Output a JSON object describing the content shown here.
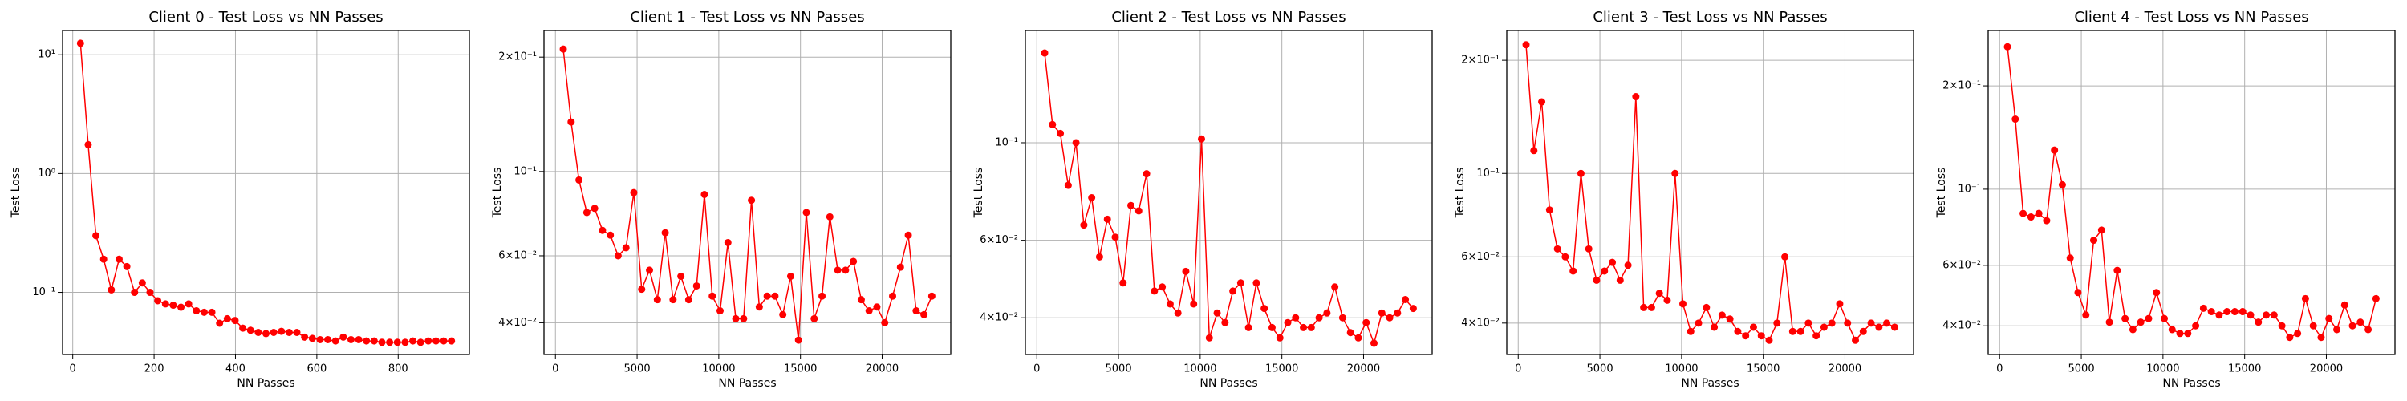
{
  "chart_data": [
    {
      "type": "line",
      "title": "Client 0 - Test Loss vs NN Passes",
      "xlabel": "NN Passes",
      "ylabel": "Test Loss",
      "color": "#ff0000",
      "log_y": true,
      "grid": true,
      "x": [
        19,
        38,
        57,
        76,
        95,
        114,
        133,
        152,
        171,
        190,
        209,
        228,
        247,
        266,
        285,
        304,
        323,
        342,
        361,
        380,
        399,
        418,
        437,
        456,
        475,
        494,
        513,
        532,
        551,
        570,
        589,
        608,
        627,
        646,
        665,
        684,
        703,
        722,
        741,
        760,
        779,
        798,
        817,
        836,
        855,
        874,
        893,
        912,
        931
      ],
      "values": [
        12.5,
        1.75,
        0.3,
        0.19,
        0.105,
        0.19,
        0.165,
        0.1,
        0.12,
        0.1,
        0.085,
        0.08,
        0.078,
        0.075,
        0.08,
        0.07,
        0.068,
        0.068,
        0.055,
        0.06,
        0.058,
        0.05,
        0.048,
        0.046,
        0.045,
        0.046,
        0.047,
        0.046,
        0.046,
        0.042,
        0.041,
        0.04,
        0.04,
        0.039,
        0.042,
        0.04,
        0.04,
        0.039,
        0.039,
        0.038,
        0.038,
        0.038,
        0.038,
        0.039,
        0.038,
        0.039,
        0.039,
        0.039,
        0.039
      ],
      "xlim": [
        -25,
        975
      ],
      "xticks": [
        0,
        200,
        400,
        600,
        800
      ],
      "ylim": [
        0.03,
        16
      ],
      "yticks": [
        {
          "value": 0.1,
          "label": "10⁻¹"
        },
        {
          "value": 1,
          "label": "10⁰"
        },
        {
          "value": 10,
          "label": "10¹"
        }
      ]
    },
    {
      "type": "line",
      "title": "Client 1 - Test Loss vs NN Passes",
      "xlabel": "NN Passes",
      "ylabel": "Test Loss",
      "color": "#ff0000",
      "log_y": true,
      "grid": true,
      "x": [
        480,
        960,
        1440,
        1920,
        2400,
        2880,
        3360,
        3840,
        4320,
        4800,
        5280,
        5760,
        6240,
        6720,
        7200,
        7680,
        8160,
        8640,
        9120,
        9600,
        10080,
        10560,
        11040,
        11520,
        12000,
        12480,
        12960,
        13440,
        13920,
        14400,
        14880,
        15360,
        15840,
        16320,
        16800,
        17280,
        17760,
        18240,
        18720,
        19200,
        19680,
        20160,
        20640,
        21120,
        21600,
        22080,
        22560,
        23040
      ],
      "values": [
        0.21,
        0.135,
        0.095,
        0.078,
        0.08,
        0.07,
        0.068,
        0.06,
        0.063,
        0.088,
        0.049,
        0.055,
        0.046,
        0.069,
        0.046,
        0.053,
        0.046,
        0.05,
        0.087,
        0.047,
        0.043,
        0.065,
        0.041,
        0.041,
        0.084,
        0.044,
        0.047,
        0.047,
        0.042,
        0.053,
        0.036,
        0.078,
        0.041,
        0.047,
        0.076,
        0.055,
        0.055,
        0.058,
        0.046,
        0.043,
        0.044,
        0.04,
        0.047,
        0.056,
        0.068,
        0.043,
        0.042,
        0.047
      ],
      "xlim": [
        -700,
        24200
      ],
      "xticks": [
        0,
        5000,
        10000,
        15000,
        20000
      ],
      "ylim": [
        0.033,
        0.235
      ],
      "yticks": [
        {
          "value": 0.04,
          "label": "4×10⁻²"
        },
        {
          "value": 0.06,
          "label": "6×10⁻²"
        },
        {
          "value": 0.1,
          "label": "10⁻¹"
        },
        {
          "value": 0.2,
          "label": "2×10⁻¹"
        }
      ]
    },
    {
      "type": "line",
      "title": "Client 2 - Test Loss vs NN Passes",
      "xlabel": "NN Passes",
      "ylabel": "Test Loss",
      "color": "#ff0000",
      "log_y": true,
      "grid": true,
      "x": [
        480,
        960,
        1440,
        1920,
        2400,
        2880,
        3360,
        3840,
        4320,
        4800,
        5280,
        5760,
        6240,
        6720,
        7200,
        7680,
        8160,
        8640,
        9120,
        9600,
        10080,
        10560,
        11040,
        11520,
        12000,
        12480,
        12960,
        13440,
        13920,
        14400,
        14880,
        15360,
        15840,
        16320,
        16800,
        17280,
        17760,
        18240,
        18720,
        19200,
        19680,
        20160,
        20640,
        21120,
        21600,
        22080,
        22560,
        23040
      ],
      "values": [
        0.16,
        0.11,
        0.105,
        0.08,
        0.1,
        0.065,
        0.075,
        0.055,
        0.067,
        0.061,
        0.048,
        0.072,
        0.07,
        0.085,
        0.046,
        0.047,
        0.043,
        0.041,
        0.051,
        0.043,
        0.102,
        0.036,
        0.041,
        0.039,
        0.046,
        0.048,
        0.038,
        0.048,
        0.042,
        0.038,
        0.036,
        0.039,
        0.04,
        0.038,
        0.038,
        0.04,
        0.041,
        0.047,
        0.04,
        0.037,
        0.036,
        0.039,
        0.035,
        0.041,
        0.04,
        0.041,
        0.044,
        0.042
      ],
      "xlim": [
        -700,
        24200
      ],
      "xticks": [
        0,
        5000,
        10000,
        15000,
        20000
      ],
      "ylim": [
        0.033,
        0.18
      ],
      "yticks": [
        {
          "value": 0.04,
          "label": "4×10⁻²"
        },
        {
          "value": 0.06,
          "label": "6×10⁻²"
        },
        {
          "value": 0.1,
          "label": "10⁻¹"
        }
      ]
    },
    {
      "type": "line",
      "title": "Client 3 - Test Loss vs NN Passes",
      "xlabel": "NN Passes",
      "ylabel": "Test Loss",
      "color": "#ff0000",
      "log_y": true,
      "grid": true,
      "x": [
        480,
        960,
        1440,
        1920,
        2400,
        2880,
        3360,
        3840,
        4320,
        4800,
        5280,
        5760,
        6240,
        6720,
        7200,
        7680,
        8160,
        8640,
        9120,
        9600,
        10080,
        10560,
        11040,
        11520,
        12000,
        12480,
        12960,
        13440,
        13920,
        14400,
        14880,
        15360,
        15840,
        16320,
        16800,
        17280,
        17760,
        18240,
        18720,
        19200,
        19680,
        20160,
        20640,
        21120,
        21600,
        22080,
        22560,
        23040
      ],
      "values": [
        0.22,
        0.115,
        0.155,
        0.08,
        0.063,
        0.06,
        0.055,
        0.1,
        0.063,
        0.052,
        0.055,
        0.058,
        0.052,
        0.057,
        0.16,
        0.044,
        0.044,
        0.048,
        0.046,
        0.1,
        0.045,
        0.038,
        0.04,
        0.044,
        0.039,
        0.042,
        0.041,
        0.038,
        0.037,
        0.039,
        0.037,
        0.036,
        0.04,
        0.06,
        0.038,
        0.038,
        0.04,
        0.037,
        0.039,
        0.04,
        0.045,
        0.04,
        0.036,
        0.038,
        0.04,
        0.039,
        0.04,
        0.039
      ],
      "xlim": [
        -700,
        24200
      ],
      "xticks": [
        0,
        5000,
        10000,
        15000,
        20000
      ],
      "ylim": [
        0.033,
        0.24
      ],
      "yticks": [
        {
          "value": 0.04,
          "label": "4×10⁻²"
        },
        {
          "value": 0.06,
          "label": "6×10⁻²"
        },
        {
          "value": 0.1,
          "label": "10⁻¹"
        },
        {
          "value": 0.2,
          "label": "2×10⁻¹"
        }
      ]
    },
    {
      "type": "line",
      "title": "Client 4 - Test Loss vs NN Passes",
      "xlabel": "NN Passes",
      "ylabel": "Test Loss",
      "color": "#ff0000",
      "log_y": true,
      "grid": true,
      "x": [
        480,
        960,
        1440,
        1920,
        2400,
        2880,
        3360,
        3840,
        4320,
        4800,
        5280,
        5760,
        6240,
        6720,
        7200,
        7680,
        8160,
        8640,
        9120,
        9600,
        10080,
        10560,
        11040,
        11520,
        12000,
        12480,
        12960,
        13440,
        13920,
        14400,
        14880,
        15360,
        15840,
        16320,
        16800,
        17280,
        17760,
        18240,
        18720,
        19200,
        19680,
        20160,
        20640,
        21120,
        21600,
        22080,
        22560,
        23040
      ],
      "values": [
        0.26,
        0.16,
        0.085,
        0.083,
        0.085,
        0.081,
        0.13,
        0.103,
        0.063,
        0.05,
        0.043,
        0.071,
        0.076,
        0.041,
        0.058,
        0.042,
        0.039,
        0.041,
        0.042,
        0.05,
        0.042,
        0.039,
        0.038,
        0.038,
        0.04,
        0.045,
        0.044,
        0.043,
        0.044,
        0.044,
        0.044,
        0.043,
        0.041,
        0.043,
        0.043,
        0.04,
        0.037,
        0.038,
        0.048,
        0.04,
        0.037,
        0.042,
        0.039,
        0.046,
        0.04,
        0.041,
        0.039,
        0.048
      ],
      "xlim": [
        -700,
        24200
      ],
      "xticks": [
        0,
        5000,
        10000,
        15000,
        20000
      ],
      "ylim": [
        0.033,
        0.29
      ],
      "yticks": [
        {
          "value": 0.04,
          "label": "4×10⁻²"
        },
        {
          "value": 0.06,
          "label": "6×10⁻²"
        },
        {
          "value": 0.1,
          "label": "10⁻¹"
        },
        {
          "value": 0.2,
          "label": "2×10⁻¹"
        }
      ]
    }
  ]
}
